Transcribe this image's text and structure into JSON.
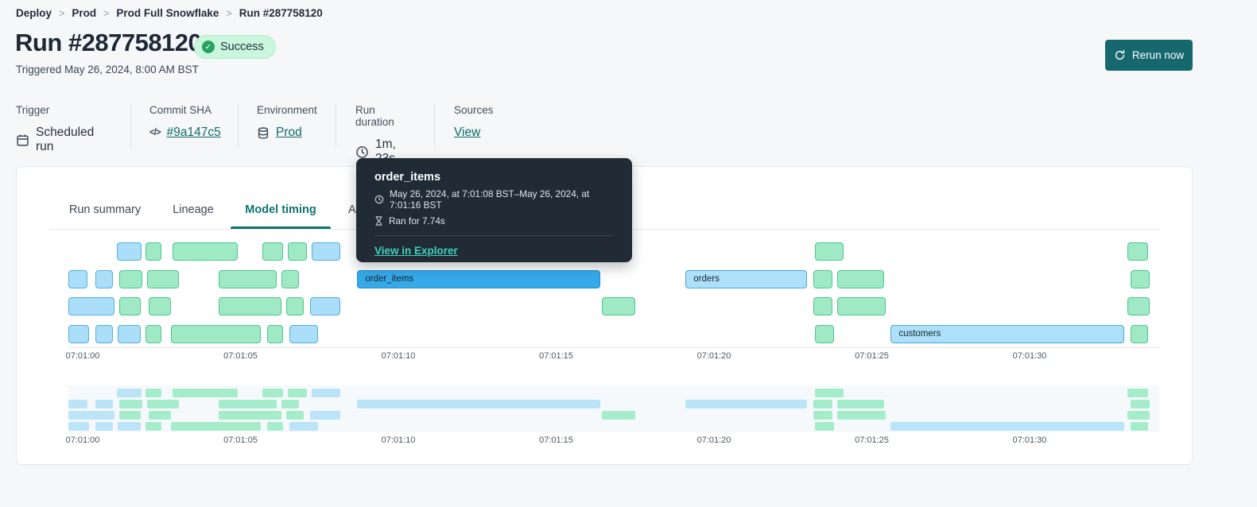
{
  "colors": {
    "accent_teal": "#0d756e",
    "link_teal": "#0f6a66",
    "button_bg": "#17686e",
    "badge_bg": "#c9f6dc",
    "badge_check": "#28a263",
    "bar_green": "#9fe9c4",
    "bar_green_border": "#4ec78c",
    "bar_blue": "#abdef8",
    "bar_blue_border": "#55aee4",
    "bar_selected": "#36a9e9",
    "bar_selected_border": "#1d8fd2",
    "bar_label_blue": "#ade1f9",
    "bar_label_border": "#4ba5da",
    "mini_green": "#a5ecca",
    "mini_blue": "#bce4f9",
    "tooltip_bg": "#202b36",
    "tooltip_link": "#41d0bd"
  },
  "breadcrumb": {
    "items": [
      "Deploy",
      "Prod",
      "Prod Full Snowflake",
      "Run #287758120"
    ],
    "separator": ">"
  },
  "header": {
    "title": "Run #287758120",
    "status_label": "Success",
    "triggered": "Triggered May 26, 2024, 8:00 AM BST",
    "rerun_label": "Rerun now"
  },
  "meta": {
    "columns": [
      {
        "label": "Trigger",
        "value": "Scheduled run",
        "icon": "calendar-icon"
      },
      {
        "label": "Commit SHA",
        "value": "#9a147c5",
        "icon": "code-icon",
        "link": true
      },
      {
        "label": "Environment",
        "value": "Prod",
        "icon": "database-icon",
        "link": true
      },
      {
        "label": "Run duration",
        "value": "1m, 23s",
        "icon": "clock-icon"
      },
      {
        "label": "Sources",
        "value": "View",
        "link": true
      }
    ]
  },
  "tabs": [
    {
      "label": "Run summary",
      "active": false
    },
    {
      "label": "Lineage",
      "active": false
    },
    {
      "label": "Model timing",
      "active": true
    },
    {
      "label": "Artifacts",
      "active": false
    }
  ],
  "tooltip": {
    "title": "order_items",
    "time_range": "May 26, 2024, at 7:01:08 BST–May 26, 2024, at 7:01:16 BST",
    "duration": "Ran for 7.74s",
    "link_label": "View in Explorer"
  },
  "chart_data": {
    "type": "gantt",
    "title": "Model timing",
    "x_unit": "seconds after 07:01:00 BST",
    "ticks": {
      "labels": [
        "07:01:00",
        "07:01:05",
        "07:01:10",
        "07:01:15",
        "07:01:20",
        "07:01:25",
        "07:01:30"
      ],
      "seconds": [
        0,
        5,
        10,
        15,
        20,
        25,
        30
      ]
    },
    "selected_model": "order_items",
    "rows": [
      [
        {
          "s": 1.08,
          "e": 1.86,
          "k": "blue"
        },
        {
          "s": 2.0,
          "e": 2.5,
          "k": "green"
        },
        {
          "s": 2.85,
          "e": 4.9,
          "k": "green"
        },
        {
          "s": 5.7,
          "e": 6.35,
          "k": "green"
        },
        {
          "s": 6.5,
          "e": 7.1,
          "k": "green"
        },
        {
          "s": 7.25,
          "e": 8.15,
          "k": "blue"
        },
        {
          "s": 23.2,
          "e": 24.1,
          "k": "green"
        },
        {
          "s": 33.1,
          "e": 33.75,
          "k": "green"
        }
      ],
      [
        {
          "s": -0.45,
          "e": 0.15,
          "k": "blue"
        },
        {
          "s": 0.4,
          "e": 0.95,
          "k": "blue"
        },
        {
          "s": 1.15,
          "e": 1.9,
          "k": "green"
        },
        {
          "s": 2.05,
          "e": 3.05,
          "k": "green"
        },
        {
          "s": 4.3,
          "e": 6.15,
          "k": "green"
        },
        {
          "s": 6.3,
          "e": 6.85,
          "k": "green"
        },
        {
          "s": 8.7,
          "e": 16.4,
          "k": "selected",
          "label": "order_items"
        },
        {
          "s": 19.1,
          "e": 22.95,
          "k": "label-blue",
          "label": "orders"
        },
        {
          "s": 23.15,
          "e": 23.75,
          "k": "green"
        },
        {
          "s": 23.9,
          "e": 25.4,
          "k": "green"
        },
        {
          "s": 33.2,
          "e": 33.8,
          "k": "green"
        }
      ],
      [
        {
          "s": -0.45,
          "e": 1.0,
          "k": "blue"
        },
        {
          "s": 1.15,
          "e": 1.85,
          "k": "green"
        },
        {
          "s": 2.1,
          "e": 2.8,
          "k": "green"
        },
        {
          "s": 4.3,
          "e": 6.3,
          "k": "green"
        },
        {
          "s": 6.45,
          "e": 7.0,
          "k": "green"
        },
        {
          "s": 7.2,
          "e": 8.15,
          "k": "blue"
        },
        {
          "s": 16.45,
          "e": 17.5,
          "k": "green"
        },
        {
          "s": 23.15,
          "e": 23.75,
          "k": "green"
        },
        {
          "s": 23.9,
          "e": 25.45,
          "k": "green"
        },
        {
          "s": 33.1,
          "e": 33.8,
          "k": "green"
        }
      ],
      [
        {
          "s": -0.45,
          "e": 0.2,
          "k": "blue"
        },
        {
          "s": 0.4,
          "e": 0.95,
          "k": "blue"
        },
        {
          "s": 1.1,
          "e": 1.85,
          "k": "blue"
        },
        {
          "s": 2.0,
          "e": 2.5,
          "k": "green"
        },
        {
          "s": 2.8,
          "e": 5.65,
          "k": "green"
        },
        {
          "s": 5.85,
          "e": 6.35,
          "k": "green"
        },
        {
          "s": 6.55,
          "e": 7.45,
          "k": "blue"
        },
        {
          "s": 23.2,
          "e": 23.8,
          "k": "green"
        },
        {
          "s": 25.6,
          "e": 33.0,
          "k": "label-blue",
          "label": "customers"
        },
        {
          "s": 33.2,
          "e": 33.75,
          "k": "green"
        }
      ]
    ]
  }
}
